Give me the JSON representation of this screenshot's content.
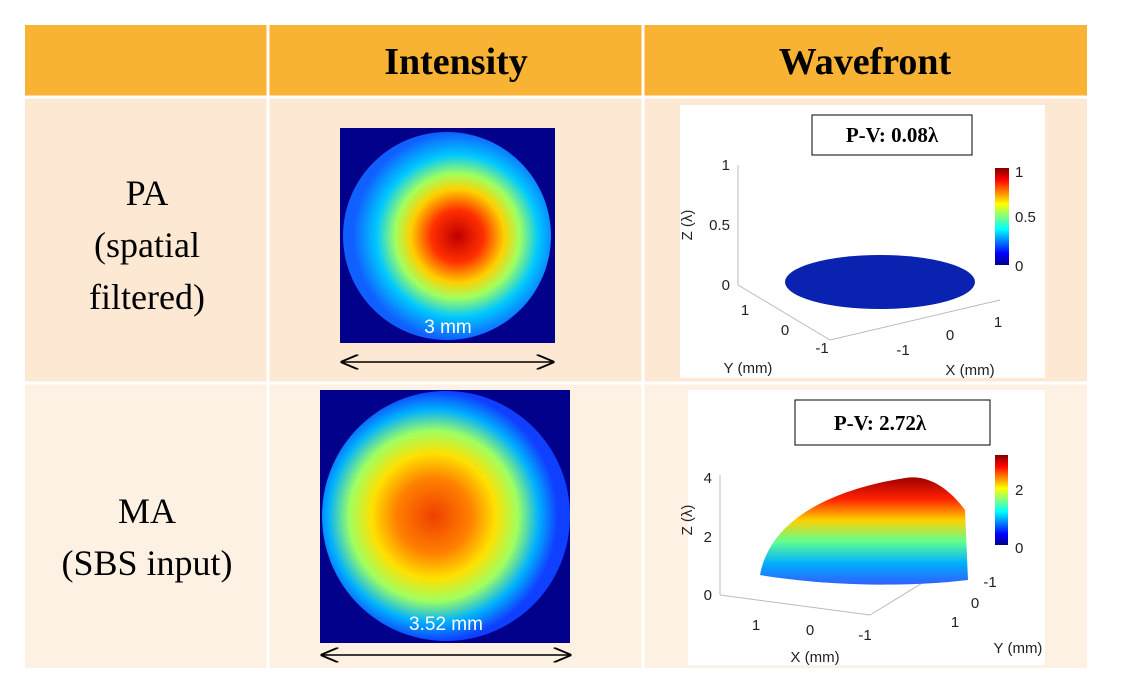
{
  "table": {
    "header": [
      "Intensity",
      "Wavefront"
    ],
    "rows": [
      {
        "label": [
          "PA",
          "(spatial",
          "filtered)"
        ],
        "intensity": {
          "scale_label": "3 mm"
        },
        "wavefront": {
          "pv": "P-V: 0.08λ",
          "z_label": "Z (λ)",
          "x_label": "X (mm)",
          "y_label": "Y (mm)",
          "z_ticks": [
            "1",
            "0.5",
            "0"
          ],
          "x_ticks": [
            "-1",
            "0",
            "1"
          ],
          "y_ticks": [
            "1",
            "0",
            "-1"
          ],
          "colorbar_ticks": [
            "1",
            "0.5",
            "0"
          ]
        }
      },
      {
        "label": [
          "MA",
          "(SBS input)"
        ],
        "intensity": {
          "scale_label": "3.52 mm"
        },
        "wavefront": {
          "pv": "P-V: 2.72λ",
          "z_label": "Z (λ)",
          "x_label": "X (mm)",
          "y_label": "Y (mm)",
          "z_ticks": [
            "4",
            "2",
            "0"
          ],
          "x_ticks": [
            "1",
            "0",
            "-1"
          ],
          "y_ticks": [
            "-1",
            "0",
            "1"
          ],
          "colorbar_ticks": [
            "2",
            "0"
          ]
        }
      }
    ]
  }
}
